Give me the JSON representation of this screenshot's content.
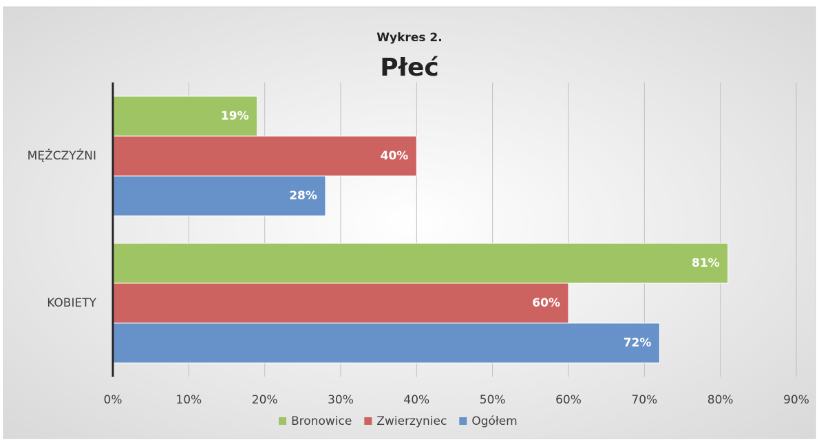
{
  "chart_data": {
    "type": "hbar",
    "title": "Płeć",
    "subtitle": "Wykres 2.",
    "categories": [
      "MĘŻCZYŹNI",
      "KOBIETY"
    ],
    "series": [
      {
        "name": "Bronowice",
        "color": "#9fc464",
        "values": [
          19,
          81
        ],
        "value_labels": [
          "19%",
          "81%"
        ]
      },
      {
        "name": "Zwierzyniec",
        "color": "#cd6361",
        "values": [
          40,
          60
        ],
        "value_labels": [
          "40%",
          "60%"
        ]
      },
      {
        "name": "Ogółem",
        "color": "#6691c9",
        "values": [
          28,
          72
        ],
        "value_labels": [
          "28%",
          "72%"
        ]
      }
    ],
    "xlim": [
      0,
      90
    ],
    "xticks": [
      {
        "value": 0,
        "label": "0%"
      },
      {
        "value": 10,
        "label": "10%"
      },
      {
        "value": 20,
        "label": "20%"
      },
      {
        "value": 30,
        "label": "30%"
      },
      {
        "value": 40,
        "label": "40%"
      },
      {
        "value": 50,
        "label": "50%"
      },
      {
        "value": 60,
        "label": "60%"
      },
      {
        "value": 70,
        "label": "70%"
      },
      {
        "value": 80,
        "label": "80%"
      },
      {
        "value": 90,
        "label": "90%"
      }
    ],
    "grid": true,
    "legend": "bottom"
  }
}
